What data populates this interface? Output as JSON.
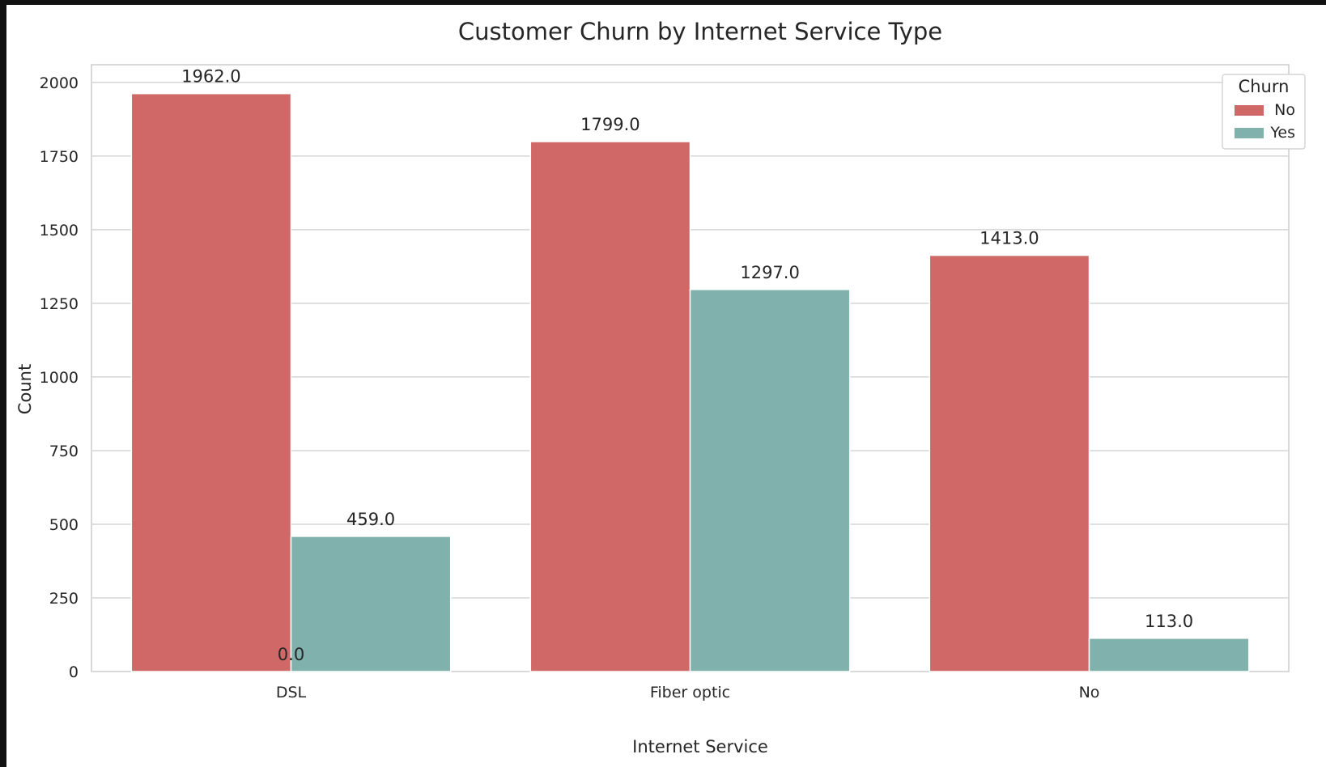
{
  "chart_data": {
    "type": "bar",
    "title": "Customer Churn by Internet Service Type",
    "xlabel": "Internet Service",
    "ylabel": "Count",
    "categories": [
      "DSL",
      "Fiber optic",
      "No"
    ],
    "series": [
      {
        "name": "No",
        "values": [
          1962,
          1799,
          1413
        ],
        "labels": [
          "1962.0",
          "1799.0",
          "1413.0"
        ],
        "color": "#d06868"
      },
      {
        "name": "Yes",
        "values": [
          459,
          1297,
          113
        ],
        "labels": [
          "459.0",
          "1297.0",
          "113.0"
        ],
        "color": "#80b1ac"
      }
    ],
    "extra_annotations": [
      {
        "text": "0.0",
        "x_category": "DSL",
        "y": 0
      }
    ],
    "legend": {
      "title": "Churn",
      "position": "top-right"
    },
    "yticks": [
      0,
      250,
      500,
      750,
      1000,
      1250,
      1500,
      1750,
      2000
    ],
    "ylim": [
      0,
      2060
    ],
    "grid": true
  }
}
